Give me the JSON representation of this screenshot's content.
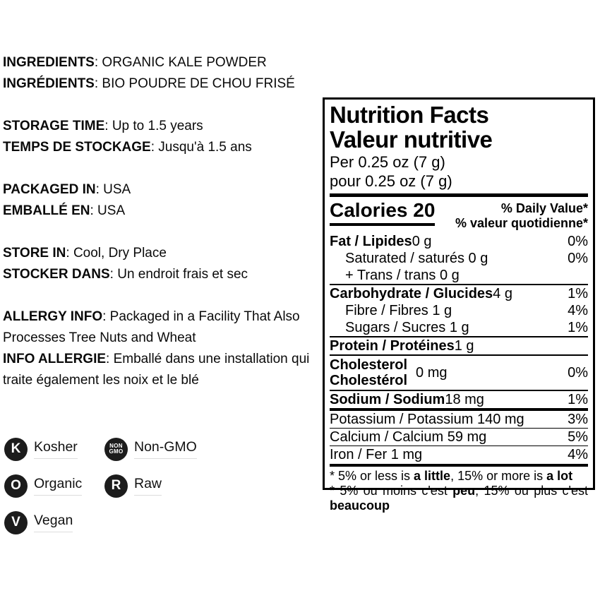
{
  "left": {
    "sections": [
      {
        "p1": {
          "b": "INGREDIENTS",
          "t": ": ORGANIC KALE POWDER"
        },
        "p2": {
          "b": "INGRÉDIENTS",
          "t": ": BIO POUDRE DE CHOU FRISÉ"
        }
      },
      {
        "p1": {
          "b": "STORAGE TIME",
          "t": ": Up to 1.5 years"
        },
        "p2": {
          "b": "TEMPS DE STOCKAGE",
          "t": ": Jusqu'à 1.5 ans"
        }
      },
      {
        "p1": {
          "b": "PACKAGED IN",
          "t": ": USA"
        },
        "p2": {
          "b": "EMBALLÉ EN",
          "t": ": USA"
        }
      },
      {
        "p1": {
          "b": "STORE IN",
          "t": ": Cool, Dry Place"
        },
        "p2": {
          "b": "STOCKER DANS",
          "t": ": Un endroit frais et sec"
        }
      },
      {
        "p1": {
          "b": "ALLERGY INFO",
          "t": ": Packaged in a Facility That Also Processes Tree Nuts and Wheat"
        },
        "p2": {
          "b": "INFO ALLERGIE",
          "t": ": Emballé dans une installation qui traite également les noix et le blé"
        }
      }
    ]
  },
  "badges": {
    "items": [
      {
        "glyph": "K",
        "label": "Kosher"
      },
      {
        "glyph_line1": "NON",
        "glyph_line2": "GMO",
        "label": "Non-GMO"
      },
      {
        "glyph": "O",
        "label": "Organic"
      },
      {
        "glyph": "R",
        "label": "Raw"
      },
      {
        "glyph": "V",
        "label": "Vegan"
      }
    ],
    "circle_color": "#1c1c1c"
  },
  "nutrition": {
    "title_en": "Nutrition Facts",
    "title_fr": "Valeur nutritive",
    "serving_en": "Per 0.25 oz (7 g)",
    "serving_fr": "pour 0.25 oz (7 g)",
    "calories": "Calories 20",
    "dv_header_en": "% Daily Value*",
    "dv_header_fr": "% valeur quotidienne*",
    "rows": {
      "fat": {
        "bold": "Fat / Lipides",
        "rest": " 0 g",
        "dv": "0%"
      },
      "saturated": {
        "rest": "Saturated / saturés 0 g",
        "dv": "0%"
      },
      "trans": {
        "rest": "+ Trans / trans 0 g",
        "dv": ""
      },
      "carb": {
        "bold": "Carbohydrate / Glucides",
        "rest": " 4 g",
        "dv": "1%"
      },
      "fibre": {
        "rest": "Fibre / Fibres 1 g",
        "dv": "4%"
      },
      "sugars": {
        "rest": "Sugars / Sucres 1 g",
        "dv": "1%"
      },
      "protein": {
        "bold": "Protein / Protéines",
        "rest": " 1 g",
        "dv": ""
      },
      "cholesterol": {
        "bold_en": "Cholesterol",
        "bold_fr": "Cholestérol",
        "rest": "0 mg",
        "dv": "0%"
      },
      "sodium": {
        "bold": "Sodium / Sodium",
        "rest": " 18 mg",
        "dv": "1%"
      },
      "potassium": {
        "rest": "Potassium / Potassium 140 mg",
        "dv": "3%"
      },
      "calcium": {
        "rest": "Calcium / Calcium 59 mg",
        "dv": "5%"
      },
      "iron": {
        "rest": "Iron / Fer 1 mg",
        "dv": "4%"
      }
    },
    "footnote_en": {
      "p1": "* 5% or less is ",
      "b1": "a little",
      "p2": ", 15% or more is ",
      "b2": "a lot"
    },
    "footnote_fr": {
      "p1": "* 5% ou moins c'est ",
      "b1": "peu",
      "p2": ", 15% ou plus c'est ",
      "b2": "beaucoup"
    }
  }
}
